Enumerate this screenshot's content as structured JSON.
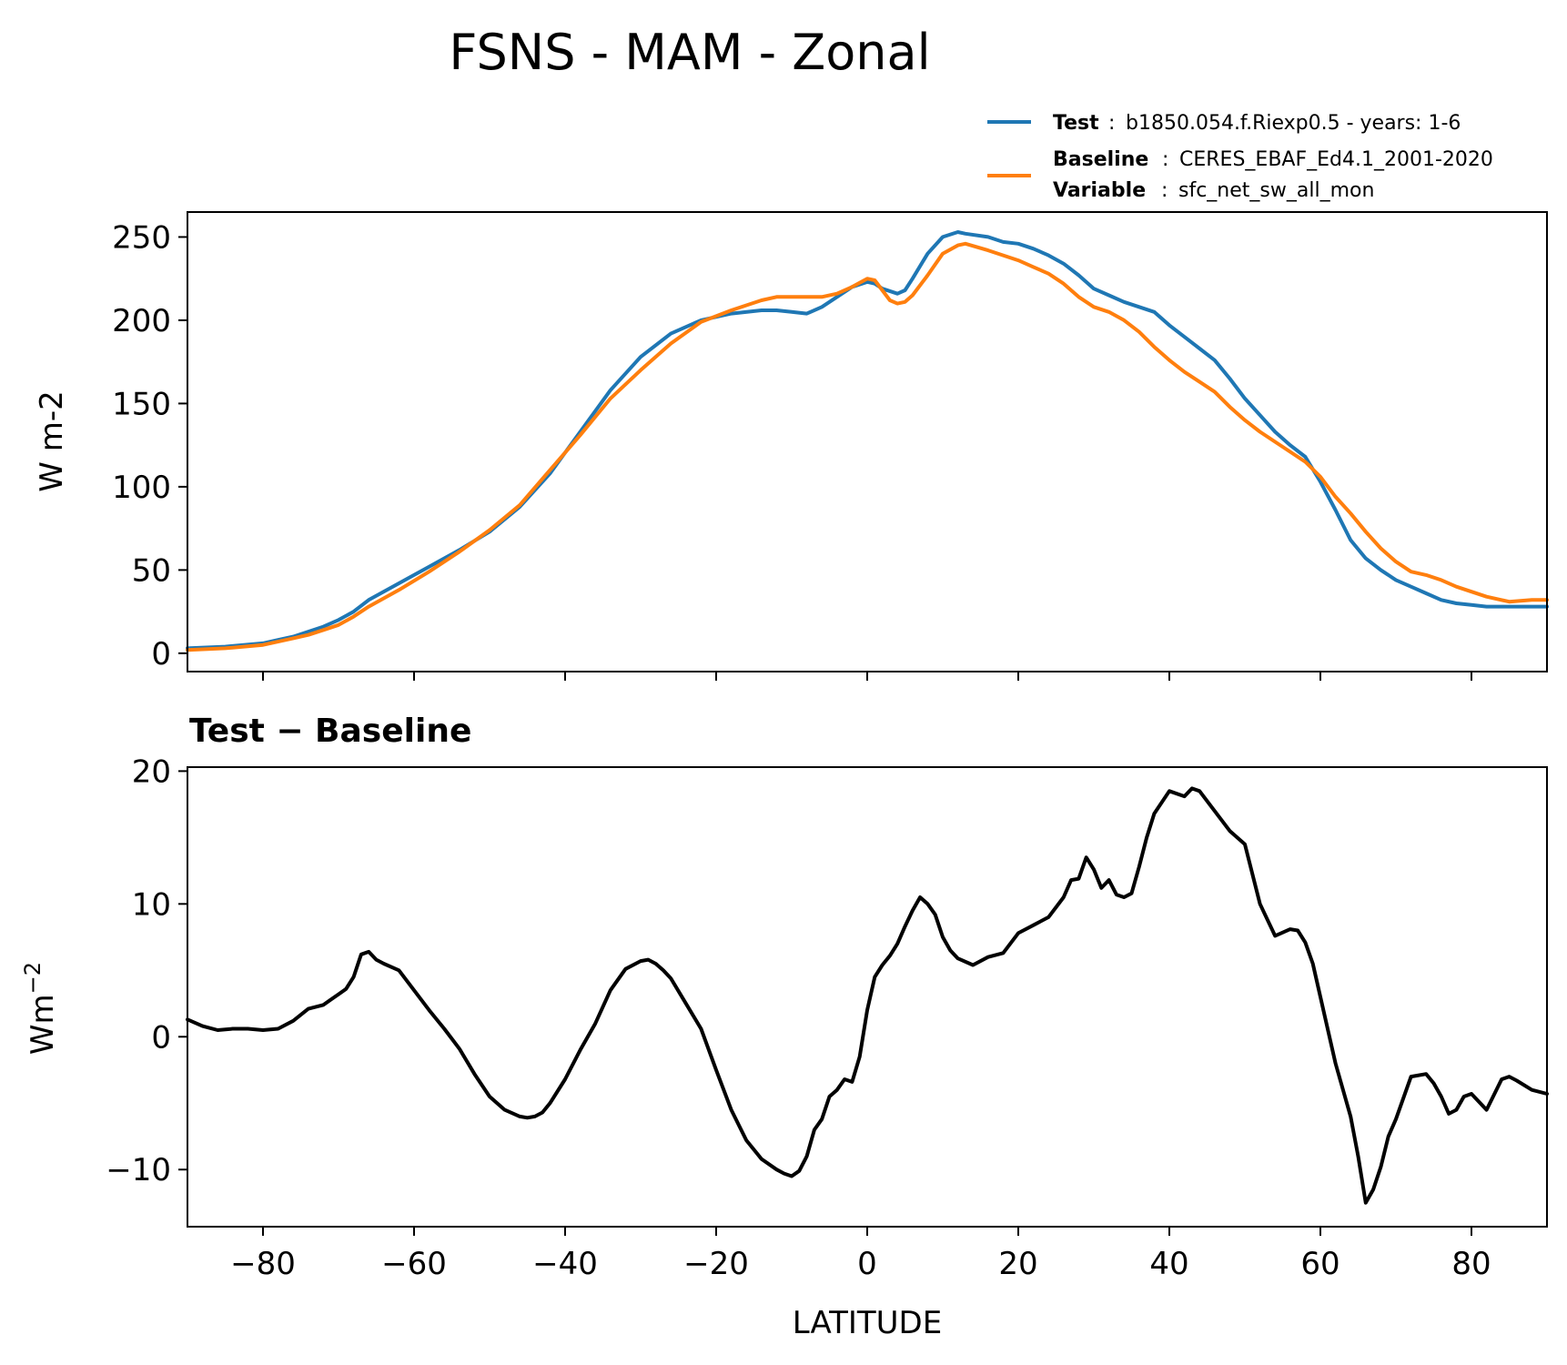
{
  "chart_data": [
    {
      "type": "line",
      "title": "FSNS - MAM - Zonal",
      "xlabel": "",
      "ylabel": "W m-2",
      "xlim": [
        -90,
        90
      ],
      "ylim": [
        -11,
        265
      ],
      "xticks": [
        -80,
        -60,
        -40,
        -20,
        0,
        20,
        40,
        60,
        80
      ],
      "yticks": [
        0,
        50,
        100,
        150,
        200,
        250
      ],
      "ytick_labels": [
        "0",
        "50",
        "100",
        "150",
        "200",
        "250"
      ],
      "legend_position": "top-right, above plot",
      "legend": [
        {
          "bold": "Test",
          "sep": ":",
          "text": "b1850.054.f.Riexp0.5 - years: 1-6",
          "color": "#1f77b4"
        },
        {
          "bold": "Baseline",
          "sep": ":",
          "text": "CERES_EBAF_Ed4.1_2001-2020",
          "color": "#ff7f0e"
        },
        {
          "bold": "Variable",
          "sep": ":",
          "text": "sfc_net_sw_all_mon",
          "color": ""
        }
      ],
      "series": [
        {
          "color": "#1f77b4",
          "x": [
            -90,
            -85,
            -80,
            -78,
            -76,
            -74,
            -72,
            -70,
            -68,
            -66,
            -62,
            -58,
            -54,
            -50,
            -46,
            -42,
            -38,
            -34,
            -30,
            -26,
            -22,
            -18,
            -14,
            -12,
            -10,
            -8,
            -6,
            -4,
            -2,
            0,
            1,
            2,
            4,
            5,
            6,
            8,
            10,
            12,
            13,
            16,
            18,
            20,
            22,
            24,
            26,
            28,
            30,
            32,
            34,
            36,
            38,
            40,
            42,
            44,
            46,
            48,
            50,
            52,
            54,
            56,
            58,
            60,
            62,
            64,
            66,
            68,
            70,
            72,
            74,
            76,
            78,
            80,
            82,
            85,
            88,
            90
          ],
          "y": [
            3,
            4,
            6,
            8,
            10,
            13,
            16,
            20,
            25,
            32,
            42,
            52,
            62,
            73,
            88,
            108,
            133,
            158,
            178,
            192,
            200,
            204,
            206,
            206,
            205,
            204,
            208,
            214,
            220,
            223,
            222,
            219,
            216,
            218,
            225,
            240,
            250,
            253,
            252,
            250,
            247,
            246,
            243,
            239,
            234,
            227,
            219,
            215,
            211,
            208,
            205,
            197,
            190,
            183,
            176,
            165,
            153,
            143,
            133,
            125,
            118,
            103,
            86,
            68,
            57,
            50,
            44,
            40,
            36,
            32,
            30,
            29,
            28,
            28,
            28,
            28
          ]
        },
        {
          "color": "#ff7f0e",
          "x": [
            -90,
            -85,
            -80,
            -78,
            -76,
            -74,
            -72,
            -70,
            -68,
            -66,
            -62,
            -58,
            -54,
            -50,
            -46,
            -42,
            -38,
            -34,
            -30,
            -26,
            -22,
            -18,
            -14,
            -12,
            -10,
            -8,
            -6,
            -4,
            -2,
            0,
            1,
            2,
            3,
            4,
            5,
            6,
            8,
            10,
            12,
            13,
            16,
            18,
            20,
            22,
            24,
            26,
            28,
            30,
            32,
            34,
            36,
            38,
            40,
            42,
            44,
            46,
            48,
            50,
            52,
            54,
            56,
            58,
            60,
            62,
            64,
            66,
            68,
            70,
            72,
            74,
            76,
            78,
            80,
            82,
            85,
            88,
            90
          ],
          "y": [
            2,
            3,
            5,
            7,
            9,
            11,
            14,
            17,
            22,
            28,
            38,
            49,
            61,
            74,
            89,
            110,
            131,
            153,
            170,
            186,
            199,
            206,
            212,
            214,
            214,
            214,
            214,
            216,
            220,
            225,
            224,
            218,
            212,
            210,
            211,
            215,
            227,
            240,
            245,
            246,
            242,
            239,
            236,
            232,
            228,
            222,
            214,
            208,
            205,
            200,
            193,
            184,
            176,
            169,
            163,
            157,
            148,
            140,
            133,
            127,
            121,
            115,
            106,
            94,
            84,
            73,
            63,
            55,
            49,
            47,
            44,
            40,
            37,
            34,
            31,
            32,
            32
          ]
        }
      ]
    },
    {
      "type": "line",
      "title": "Test − Baseline",
      "xlabel": "LATITUDE",
      "ylabel_main": "Wm",
      "ylabel_sup": "−2",
      "xlim": [
        -90,
        90
      ],
      "ylim": [
        -14.3,
        20.3
      ],
      "xticks": [
        -80,
        -60,
        -40,
        -20,
        0,
        20,
        40,
        60,
        80
      ],
      "xtick_labels": [
        "−80",
        "−60",
        "−40",
        "−20",
        "0",
        "20",
        "40",
        "60",
        "80"
      ],
      "yticks": [
        -10,
        0,
        10,
        20
      ],
      "ytick_labels": [
        "−10",
        "0",
        "10",
        "20"
      ],
      "series": [
        {
          "color": "#000000",
          "x": [
            -90,
            -88,
            -86,
            -84,
            -82,
            -80,
            -78,
            -76,
            -74,
            -72,
            -71,
            -70,
            -69,
            -68,
            -67,
            -66,
            -65,
            -64,
            -62,
            -60,
            -58,
            -56,
            -54,
            -52,
            -50,
            -48,
            -46,
            -45,
            -44,
            -43,
            -42,
            -40,
            -38,
            -36,
            -34,
            -32,
            -30,
            -29,
            -28,
            -27,
            -26,
            -24,
            -22,
            -20,
            -18,
            -16,
            -14,
            -12,
            -11,
            -10,
            -9,
            -8,
            -7,
            -6,
            -5,
            -4,
            -3,
            -2,
            -1,
            0,
            1,
            2,
            3,
            4,
            5,
            6,
            7,
            8,
            9,
            10,
            11,
            12,
            14,
            16,
            18,
            20,
            22,
            24,
            26,
            27,
            28,
            29,
            30,
            31,
            32,
            33,
            34,
            35,
            36,
            37,
            38,
            40,
            42,
            43,
            44,
            46,
            48,
            50,
            52,
            54,
            56,
            57,
            58,
            59,
            60,
            62,
            64,
            65,
            66,
            67,
            68,
            69,
            70,
            72,
            74,
            75,
            76,
            77,
            78,
            79,
            80,
            82,
            84,
            85,
            86,
            88,
            90
          ],
          "y": [
            1.3,
            0.8,
            0.5,
            0.6,
            0.6,
            0.5,
            0.6,
            1.2,
            2.1,
            2.4,
            2.8,
            3.2,
            3.6,
            4.5,
            6.2,
            6.4,
            5.8,
            5.5,
            5.0,
            3.5,
            2.0,
            0.6,
            -0.9,
            -2.8,
            -4.5,
            -5.5,
            -6.0,
            -6.1,
            -6.0,
            -5.7,
            -5.0,
            -3.2,
            -1.0,
            1.0,
            3.5,
            5.1,
            5.7,
            5.8,
            5.5,
            5.0,
            4.4,
            2.5,
            0.6,
            -2.5,
            -5.5,
            -7.8,
            -9.2,
            -10.0,
            -10.3,
            -10.5,
            -10.1,
            -9.0,
            -7.0,
            -6.2,
            -4.5,
            -4.0,
            -3.2,
            -3.4,
            -1.5,
            2.0,
            4.5,
            5.4,
            6.1,
            7.0,
            8.3,
            9.5,
            10.5,
            10.0,
            9.2,
            7.5,
            6.5,
            5.9,
            5.4,
            6.0,
            6.3,
            7.8,
            8.4,
            9.0,
            10.5,
            11.8,
            11.9,
            13.5,
            12.6,
            11.2,
            11.8,
            10.7,
            10.5,
            10.8,
            12.8,
            15.0,
            16.8,
            18.5,
            18.1,
            18.7,
            18.5,
            17.0,
            15.5,
            14.5,
            10.0,
            7.6,
            8.1,
            8.0,
            7.1,
            5.5,
            3.0,
            -2.0,
            -6.0,
            -9.0,
            -12.5,
            -11.5,
            -9.8,
            -7.5,
            -6.2,
            -3.0,
            -2.8,
            -3.5,
            -4.5,
            -5.8,
            -5.5,
            -4.5,
            -4.3,
            -5.5,
            -3.2,
            -3.0,
            -3.3,
            -4.0,
            -4.3
          ]
        }
      ]
    }
  ]
}
